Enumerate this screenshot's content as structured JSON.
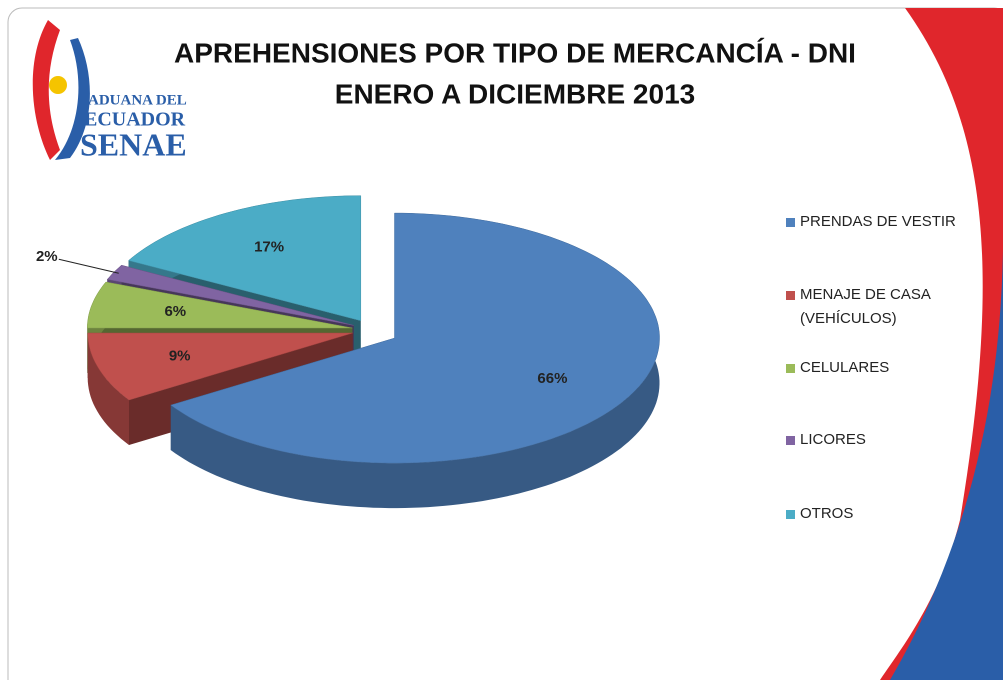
{
  "logo": [
    "ADUANA DEL",
    "ECUADOR",
    "SENAE"
  ],
  "chart_data": {
    "type": "pie",
    "title": "APREHENSIONES POR TIPO DE MERCANCÍA - DNI",
    "subtitle": "ENERO A DICIEMBRE 2013",
    "categories": [
      "PRENDAS DE VESTIR",
      "MENAJE DE CASA (VEHÍCULOS)",
      "CELULARES",
      "LICORES",
      "OTROS"
    ],
    "values": [
      66,
      9,
      6,
      2,
      17
    ],
    "value_labels": [
      "66%",
      "9%",
      "6%",
      "2%",
      "17%"
    ],
    "colors": [
      "#4f81bd",
      "#c0504d",
      "#9bbb59",
      "#8064a2",
      "#4bacc6"
    ],
    "legend": "right"
  }
}
